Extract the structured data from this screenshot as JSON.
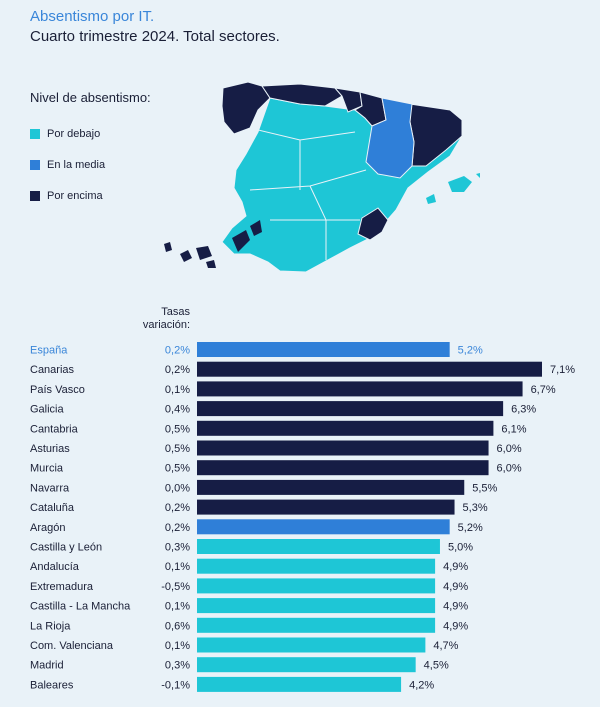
{
  "header": {
    "title": "Absentismo por IT.",
    "subtitle": "Cuarto trimestre 2024. Total sectores."
  },
  "legend": {
    "title": "Nivel de absentismo:",
    "items": [
      {
        "label": "Por debajo",
        "color": "#1ec6d6"
      },
      {
        "label": "En la media",
        "color": "#2f7fd8"
      },
      {
        "label": "Por encima",
        "color": "#161d45"
      }
    ]
  },
  "tasas_header": [
    "Tasas",
    "variación:"
  ],
  "colors": {
    "debajo": "#1ec6d6",
    "media": "#2f7fd8",
    "encima": "#161d45",
    "espana_label": "#3a86d9",
    "text": "#1a1f36"
  },
  "chart_data": {
    "type": "bar",
    "orientation": "horizontal",
    "categories": [
      "España",
      "Canarias",
      "País Vasco",
      "Galicia",
      "Cantabria",
      "Asturias",
      "Murcia",
      "Navarra",
      "Cataluña",
      "Aragón",
      "Castilla y León",
      "Andalucía",
      "Extremadura",
      "Castilla - La Mancha",
      "La Rioja",
      "Com. Valenciana",
      "Madrid",
      "Baleares"
    ],
    "values": [
      5.2,
      7.1,
      6.7,
      6.3,
      6.1,
      6.0,
      6.0,
      5.5,
      5.3,
      5.2,
      5.0,
      4.9,
      4.9,
      4.9,
      4.9,
      4.7,
      4.5,
      4.2
    ],
    "value_labels": [
      "5,2%",
      "7,1%",
      "6,7%",
      "6,3%",
      "6,1%",
      "6,0%",
      "6,0%",
      "5,5%",
      "5,3%",
      "5,2%",
      "5,0%",
      "4,9%",
      "4,9%",
      "4,9%",
      "4,9%",
      "4,7%",
      "4,5%",
      "4,2%"
    ],
    "variation_labels": [
      "0,2%",
      "0,2%",
      "0,1%",
      "0,4%",
      "0,5%",
      "0,5%",
      "0,5%",
      "0,0%",
      "0,2%",
      "0,2%",
      "0,3%",
      "0,1%",
      "-0,5%",
      "0,1%",
      "0,6%",
      "0,1%",
      "0,3%",
      "-0,1%"
    ],
    "levels": [
      "media",
      "encima",
      "encima",
      "encima",
      "encima",
      "encima",
      "encima",
      "encima",
      "encima",
      "media",
      "debajo",
      "debajo",
      "debajo",
      "debajo",
      "debajo",
      "debajo",
      "debajo",
      "debajo"
    ],
    "xlim": [
      0,
      7.1
    ]
  }
}
